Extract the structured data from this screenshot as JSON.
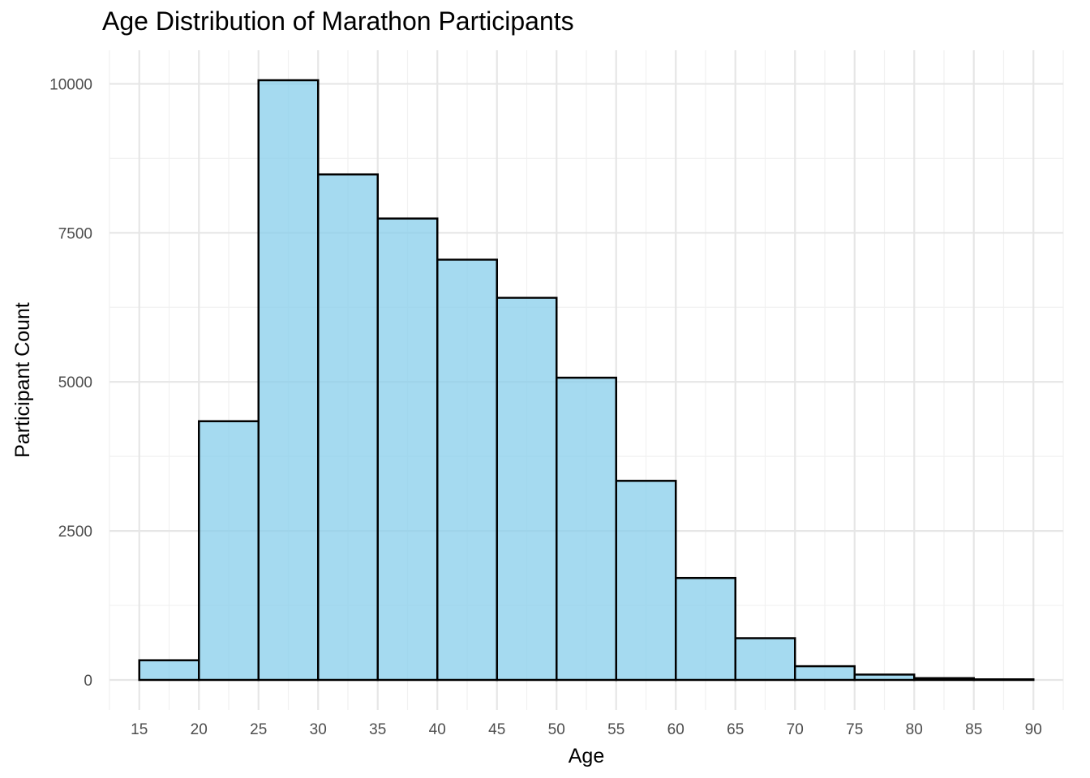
{
  "chart_data": {
    "type": "bar",
    "title": "Age Distribution of Marathon Participants",
    "xlabel": "Age",
    "ylabel": "Participant Count",
    "bins": [
      {
        "start": 15,
        "end": 20,
        "value": 330
      },
      {
        "start": 20,
        "end": 25,
        "value": 4340
      },
      {
        "start": 25,
        "end": 30,
        "value": 10060
      },
      {
        "start": 30,
        "end": 35,
        "value": 8480
      },
      {
        "start": 35,
        "end": 40,
        "value": 7740
      },
      {
        "start": 40,
        "end": 45,
        "value": 7050
      },
      {
        "start": 45,
        "end": 50,
        "value": 6410
      },
      {
        "start": 50,
        "end": 55,
        "value": 5070
      },
      {
        "start": 55,
        "end": 60,
        "value": 3340
      },
      {
        "start": 60,
        "end": 65,
        "value": 1710
      },
      {
        "start": 65,
        "end": 70,
        "value": 700
      },
      {
        "start": 70,
        "end": 75,
        "value": 230
      },
      {
        "start": 75,
        "end": 80,
        "value": 90
      },
      {
        "start": 80,
        "end": 85,
        "value": 30
      },
      {
        "start": 85,
        "end": 90,
        "value": 10
      }
    ],
    "x_ticks": [
      15,
      20,
      25,
      30,
      35,
      40,
      45,
      50,
      55,
      60,
      65,
      70,
      75,
      80,
      85,
      90
    ],
    "y_ticks": [
      0,
      2500,
      5000,
      7500,
      10000
    ],
    "xlim": [
      12.5,
      92.5
    ],
    "ylim": [
      -503,
      10563
    ],
    "grid": true,
    "legend": "none",
    "colors": {
      "bar_fill": "#87CEEB",
      "bar_fill_opacity": 0.75,
      "bar_stroke": "#000000",
      "grid_major": "#e6e6e6",
      "grid_minor": "#f1f1f1"
    }
  }
}
